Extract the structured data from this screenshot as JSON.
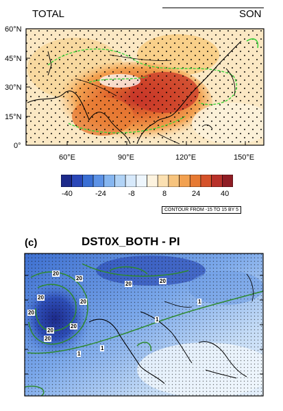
{
  "top_panel": {
    "left_title": "TOTAL",
    "right_title": "SON",
    "lat_ticks": [
      "60°N",
      "45°N",
      "30°N",
      "15°N",
      "0°"
    ],
    "lon_ticks": [
      "60°E",
      "90°E",
      "120°E",
      "150°E"
    ],
    "colorbar_labels": [
      "-40",
      "-24",
      "-8",
      "8",
      "24",
      "40"
    ],
    "colorbar_colors": [
      "#1d2a8a",
      "#2a47b8",
      "#3a6fd4",
      "#5c92e6",
      "#86b6f0",
      "#b1d3f6",
      "#d7e9fb",
      "#eef6fd",
      "#fdf3df",
      "#fbe0b1",
      "#f7c47e",
      "#f2a150",
      "#e77a33",
      "#d5522a",
      "#b8312a",
      "#8f1d24"
    ],
    "contour_note": "CONTOUR FROM -15 TO 15 BY 5"
  },
  "bottom_panel": {
    "panel_letter": "(c)",
    "title": "DST0X_BOTH - PI",
    "contour_labels": [
      "20",
      "20",
      "20",
      "20",
      "20",
      "20",
      "20",
      "20",
      "20",
      "20",
      "1",
      "1",
      "1",
      "1"
    ]
  }
}
